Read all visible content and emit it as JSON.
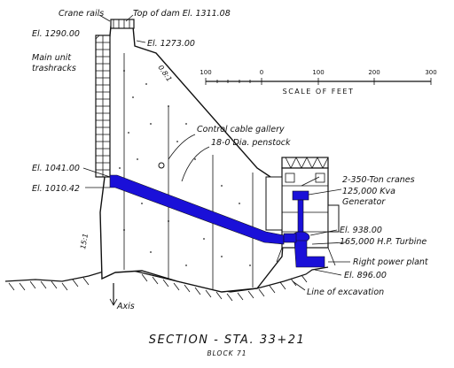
{
  "labels": {
    "crane_rails": "Crane rails",
    "top_of_dam": "Top of dam El. 1311.08",
    "el_1290": "El. 1290.00",
    "el_1273": "El. 1273.00",
    "main_unit_1": "Main unit",
    "main_unit_2": "trashracks",
    "slope_08": "0.8:1",
    "control_cable": "Control cable gallery",
    "penstock": "18-0 Dia. penstock",
    "el_1041": "El. 1041.00",
    "el_1010": "El. 1010.42",
    "cranes": "2-350-Ton cranes",
    "kva_1": "125,000 Kva",
    "kva_2": "Generator",
    "el_938": "El. 938.00",
    "turbine": "165,000 H.P. Turbine",
    "power_plant": "Right power plant",
    "el_896": "El. 896.00",
    "excavation": "Line of excavation",
    "slope_15": "15:1",
    "axis": "Axis"
  },
  "scale": {
    "ticks": [
      "100",
      "0",
      "100",
      "200",
      "300"
    ],
    "caption": "SCALE OF FEET"
  },
  "title": "SECTION - STA. 33+21",
  "subtitle": "BLOCK 71",
  "colors": {
    "penstock": "#1a10d8",
    "ink": "#111111",
    "concrete": "#ffffff"
  }
}
